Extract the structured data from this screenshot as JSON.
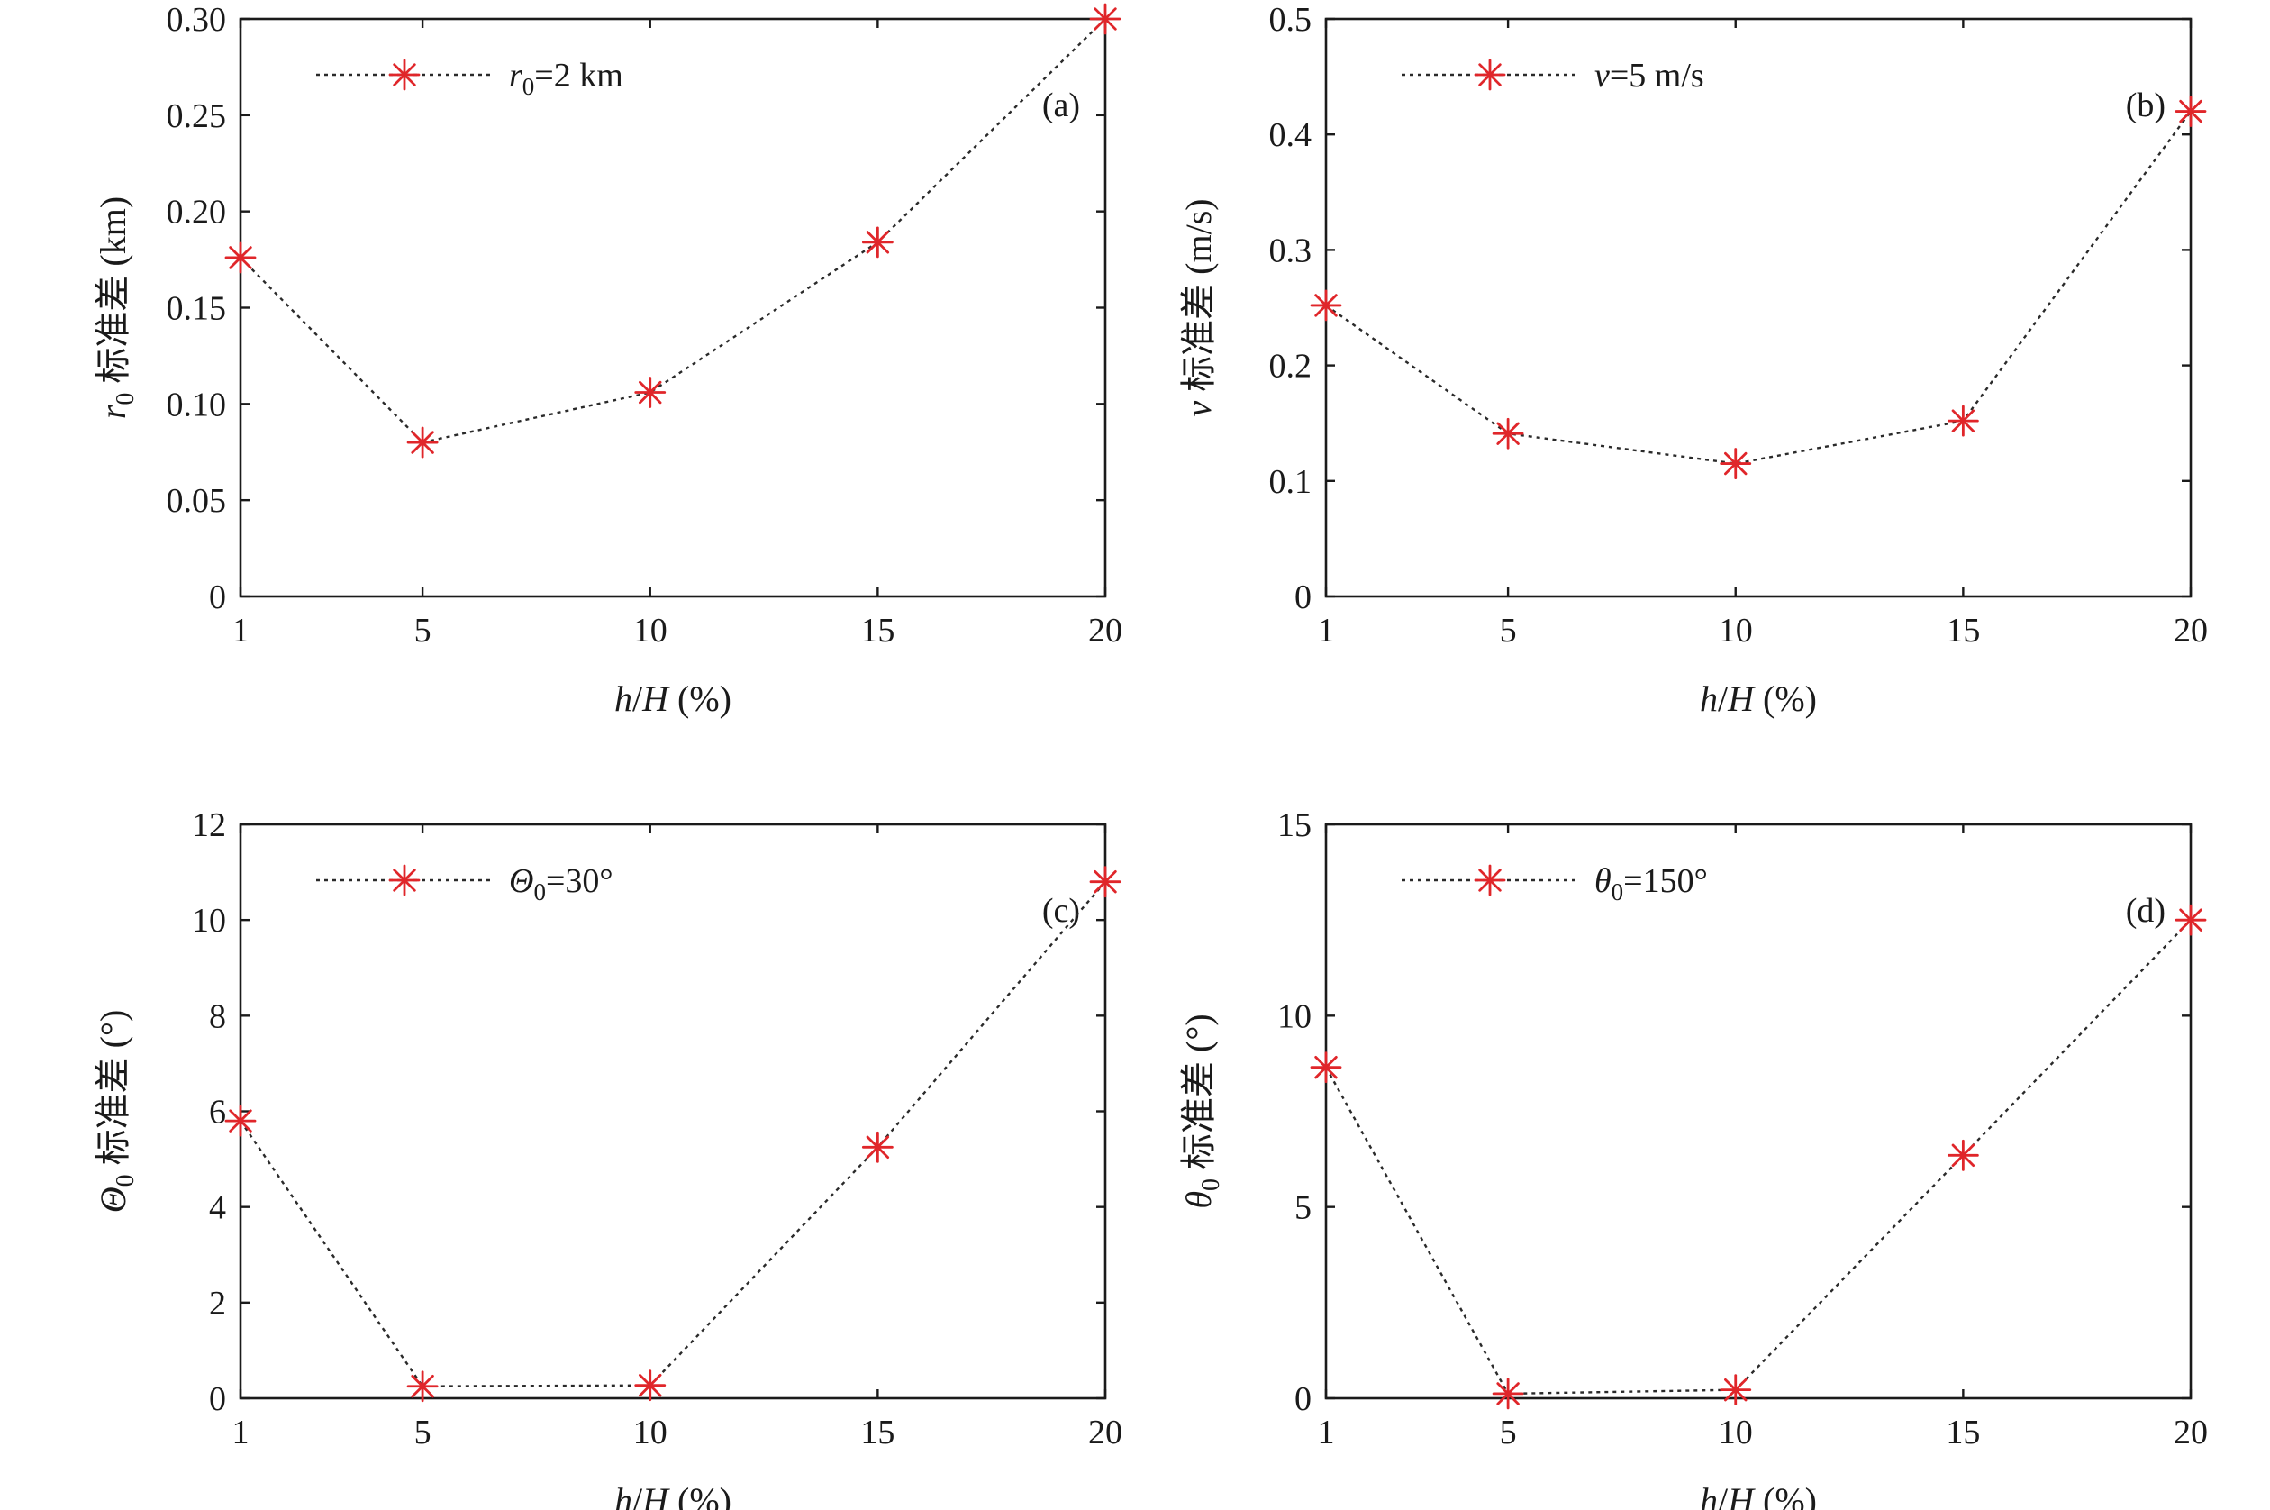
{
  "marker_color": "#e0262a",
  "line_color": "#2a2a2a",
  "chart_data": [
    {
      "type": "line",
      "panel": "(a)",
      "x": [
        1,
        5,
        10,
        15,
        20
      ],
      "x_ticks": [
        1,
        5,
        10,
        15,
        20
      ],
      "x_tick_labels": [
        "1",
        "5",
        "10",
        "15",
        "20"
      ],
      "xlim": [
        1,
        20
      ],
      "xlabel": {
        "italic_a": "h",
        "middle": "/",
        "italic_b": "H",
        "rest": " (%)"
      },
      "ylim": [
        0,
        0.3
      ],
      "y_ticks": [
        0,
        0.05,
        0.1,
        0.15,
        0.2,
        0.25,
        0.3
      ],
      "y_tick_labels": [
        "0",
        "0.05",
        "0.10",
        "0.15",
        "0.20",
        "0.25",
        "0.30"
      ],
      "ylabel": {
        "symbol": "r",
        "sub": "0",
        "rest": " 标准差 (km)"
      },
      "legend": {
        "symbol": "r",
        "sub": "0",
        "rest": "=2 km",
        "position": "top-left"
      },
      "series": [
        {
          "name": "r0=2 km",
          "values": [
            0.176,
            0.08,
            0.106,
            0.184,
            0.3
          ]
        }
      ]
    },
    {
      "type": "line",
      "panel": "(b)",
      "x": [
        1,
        5,
        10,
        15,
        20
      ],
      "x_ticks": [
        1,
        5,
        10,
        15,
        20
      ],
      "x_tick_labels": [
        "1",
        "5",
        "10",
        "15",
        "20"
      ],
      "xlim": [
        1,
        20
      ],
      "xlabel": {
        "italic_a": "h",
        "middle": "/",
        "italic_b": "H",
        "rest": " (%)"
      },
      "ylim": [
        0,
        0.5
      ],
      "y_ticks": [
        0,
        0.1,
        0.2,
        0.3,
        0.4,
        0.5
      ],
      "y_tick_labels": [
        "0",
        "0.1",
        "0.2",
        "0.3",
        "0.4",
        "0.5"
      ],
      "ylabel": {
        "symbol": "v",
        "sub": "",
        "rest": " 标准差 (m/s)"
      },
      "legend": {
        "symbol": "v",
        "sub": "",
        "rest": "=5 m/s",
        "position": "top-left"
      },
      "series": [
        {
          "name": "v=5 m/s",
          "values": [
            0.252,
            0.141,
            0.115,
            0.152,
            0.42
          ]
        }
      ]
    },
    {
      "type": "line",
      "panel": "(c)",
      "x": [
        1,
        5,
        10,
        15,
        20
      ],
      "x_ticks": [
        1,
        5,
        10,
        15,
        20
      ],
      "x_tick_labels": [
        "1",
        "5",
        "10",
        "15",
        "20"
      ],
      "xlim": [
        1,
        20
      ],
      "xlabel": {
        "italic_a": "h",
        "middle": "/",
        "italic_b": "H",
        "rest": " (%)"
      },
      "ylim": [
        0,
        12
      ],
      "y_ticks": [
        0,
        2,
        4,
        6,
        8,
        10,
        12
      ],
      "y_tick_labels": [
        "0",
        "2",
        "4",
        "6",
        "8",
        "10",
        "12"
      ],
      "ylabel": {
        "symbol": "Θ",
        "sub": "0",
        "rest": " 标准差 (°)"
      },
      "legend": {
        "symbol": "Θ",
        "sub": "0",
        "rest": "=30°",
        "position": "top-left"
      },
      "series": [
        {
          "name": "Θ0=30°",
          "values": [
            5.8,
            0.25,
            0.27,
            5.25,
            10.8
          ]
        }
      ]
    },
    {
      "type": "line",
      "panel": "(d)",
      "x": [
        1,
        5,
        10,
        15,
        20
      ],
      "x_ticks": [
        1,
        5,
        10,
        15,
        20
      ],
      "x_tick_labels": [
        "1",
        "5",
        "10",
        "15",
        "20"
      ],
      "xlim": [
        1,
        20
      ],
      "xlabel": {
        "italic_a": "h",
        "middle": "/",
        "italic_b": "H",
        "rest": " (%)"
      },
      "ylim": [
        0,
        15
      ],
      "y_ticks": [
        0,
        5,
        10,
        15
      ],
      "y_tick_labels": [
        "0",
        "5",
        "10",
        "15"
      ],
      "ylabel": {
        "symbol": "θ",
        "sub": "0",
        "rest": " 标准差 (°)"
      },
      "legend": {
        "symbol": "θ",
        "sub": "0",
        "rest": "=150°",
        "position": "top-left"
      },
      "series": [
        {
          "name": "θ0=150°",
          "values": [
            8.65,
            0.12,
            0.22,
            6.35,
            12.5
          ]
        }
      ]
    }
  ]
}
